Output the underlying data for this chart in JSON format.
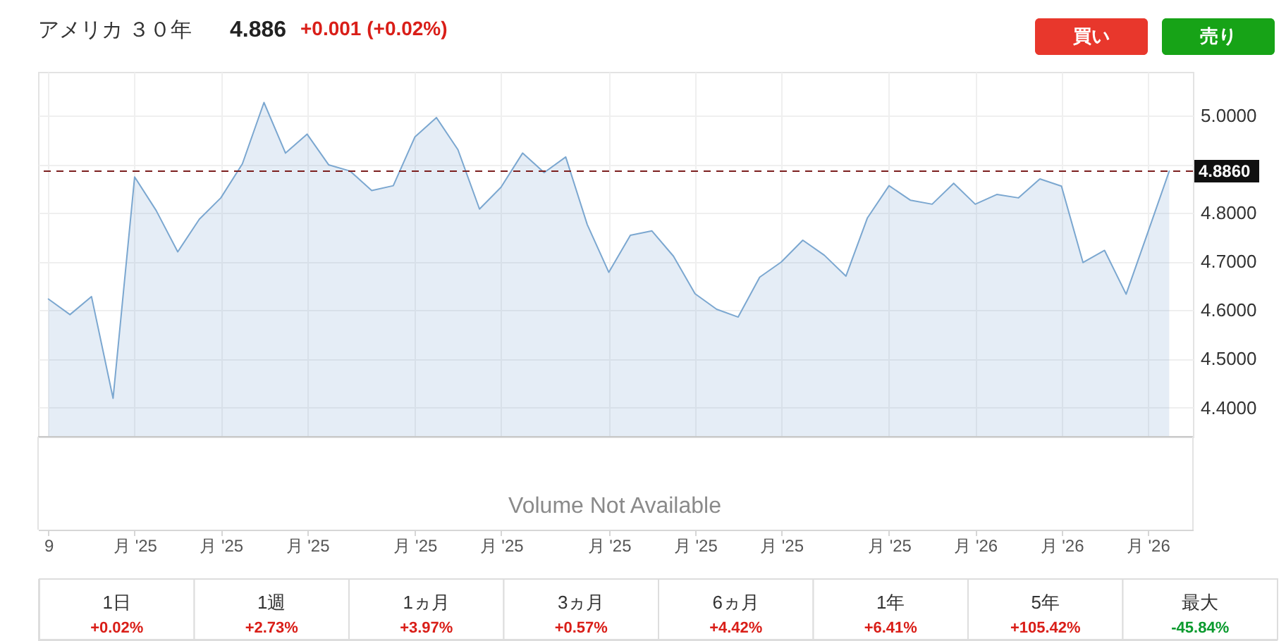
{
  "chart_data": [
    {
      "type": "area",
      "title": "アメリカ ３０年",
      "categories": [
        "9",
        null,
        null,
        null,
        "月 '25",
        null,
        null,
        null,
        "月 '25",
        null,
        null,
        null,
        "月 '25",
        null,
        null,
        null,
        null,
        "月 '25",
        null,
        null,
        null,
        "月 '25",
        null,
        null,
        null,
        null,
        "月 '25",
        null,
        null,
        null,
        "月 '25",
        null,
        null,
        null,
        "月 '25",
        null,
        null,
        null,
        null,
        "月 '25",
        null,
        null,
        null,
        "月 '26",
        null,
        null,
        null,
        "月 '26",
        null,
        null,
        null,
        "月 '26",
        null
      ],
      "values": [
        4.623,
        4.591,
        4.628,
        4.419,
        4.874,
        4.805,
        4.72,
        4.787,
        4.831,
        4.901,
        5.027,
        4.923,
        4.962,
        4.899,
        4.886,
        4.846,
        4.856,
        4.956,
        4.996,
        4.93,
        4.808,
        4.853,
        4.923,
        4.883,
        4.915,
        4.776,
        4.678,
        4.754,
        4.763,
        4.711,
        4.634,
        4.602,
        4.586,
        4.668,
        4.699,
        4.744,
        4.713,
        4.67,
        4.79,
        4.856,
        4.826,
        4.818,
        4.861,
        4.818,
        4.838,
        4.831,
        4.87,
        4.855,
        4.698,
        4.723,
        4.633,
        4.759,
        4.886
      ],
      "color": "#7ba7d0",
      "ylim": [
        4.34,
        5.09
      ],
      "yticks": [
        {
          "value": 4.4,
          "label": "4.4000"
        },
        {
          "value": 4.5,
          "label": "4.5000"
        },
        {
          "value": 4.6,
          "label": "4.6000"
        },
        {
          "value": 4.7,
          "label": "4.7000"
        },
        {
          "value": 4.8,
          "label": "4.8000"
        },
        {
          "value": 4.9,
          "label": null
        },
        {
          "value": 5.0,
          "label": "5.0000"
        }
      ],
      "grid": true,
      "ref_lines": [
        {
          "axis": "y",
          "value": 4.886,
          "label": "4.8860",
          "color": "#7b1f1f",
          "line_style": "dashed"
        }
      ],
      "annotations": [
        "4.886",
        "+0.001 (+0.02%)",
        "買い",
        "売り",
        "Volume Not Available"
      ]
    },
    {
      "type": "other",
      "annotations": [
        "1日",
        "+0.02%",
        "1週",
        "+2.73%",
        "1ヵ月",
        "+3.97%",
        "3ヵ月",
        "+0.57%",
        "6ヵ月",
        "+4.42%",
        "1年",
        "+6.41%",
        "5年",
        "+105.42%",
        "最大",
        "-45.84%"
      ],
      "colors": [
        "#333333",
        "#d91e18",
        "#333333",
        "#d91e18",
        "#333333",
        "#d91e18",
        "#333333",
        "#d91e18",
        "#333333",
        "#d91e18",
        "#333333",
        "#d91e18",
        "#333333",
        "#d91e18",
        "#333333",
        "#0a9a2e"
      ]
    }
  ]
}
